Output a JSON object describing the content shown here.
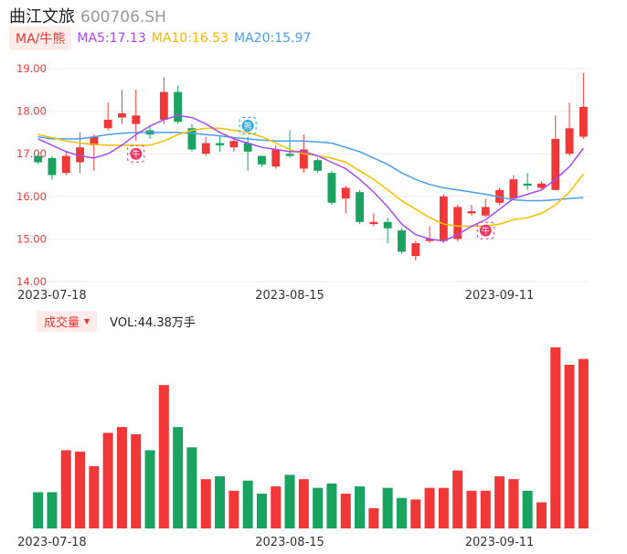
{
  "stock": {
    "name": "曲江文旅",
    "code": "600706.SH"
  },
  "indicators": {
    "ma_tag": "MA/牛熊",
    "ma5": "MA5:17.13",
    "ma10": "MA10:16.53",
    "ma20": "MA20:15.97",
    "colors": {
      "ma5": "#a64bf4",
      "ma10": "#f5c000",
      "ma20": "#4a9ef0",
      "up": "#f03838",
      "down": "#1aa260"
    }
  },
  "volume": {
    "tag": "成交量",
    "text": "VOL:44.38万手"
  },
  "markers": {
    "bull": "牛",
    "bear": "熊"
  },
  "chart_data": {
    "type": "candlestick",
    "y_ticks": [
      "19.00",
      "18.00",
      "17.00",
      "16.00",
      "15.00",
      "14.00"
    ],
    "ylim": [
      14.0,
      19.0
    ],
    "x_ticks": [
      {
        "label": "2023-07-18",
        "index": 1
      },
      {
        "label": "2023-08-15",
        "index": 18
      },
      {
        "label": "2023-09-11",
        "index": 33
      }
    ],
    "candles": [
      {
        "o": 16.95,
        "c": 16.8,
        "h": 17.0,
        "l": 16.75,
        "v": 25
      },
      {
        "o": 16.9,
        "c": 16.5,
        "h": 16.95,
        "l": 16.4,
        "v": 25
      },
      {
        "o": 16.55,
        "c": 16.95,
        "h": 17.05,
        "l": 16.5,
        "v": 54
      },
      {
        "o": 16.8,
        "c": 17.15,
        "h": 17.5,
        "l": 16.55,
        "v": 53
      },
      {
        "o": 17.2,
        "c": 17.4,
        "h": 17.45,
        "l": 16.6,
        "v": 43
      },
      {
        "o": 17.6,
        "c": 17.8,
        "h": 18.2,
        "l": 17.55,
        "v": 66
      },
      {
        "o": 17.85,
        "c": 17.95,
        "h": 18.5,
        "l": 17.7,
        "v": 70
      },
      {
        "o": 17.7,
        "c": 17.9,
        "h": 18.5,
        "l": 17.3,
        "v": 65
      },
      {
        "o": 17.55,
        "c": 17.45,
        "h": 17.65,
        "l": 17.35,
        "v": 54
      },
      {
        "o": 17.8,
        "c": 18.45,
        "h": 18.8,
        "l": 17.7,
        "v": 99
      },
      {
        "o": 18.45,
        "c": 17.75,
        "h": 18.6,
        "l": 17.7,
        "v": 70
      },
      {
        "o": 17.6,
        "c": 17.1,
        "h": 17.7,
        "l": 17.05,
        "v": 56
      },
      {
        "o": 17.0,
        "c": 17.25,
        "h": 17.4,
        "l": 16.95,
        "v": 34
      },
      {
        "o": 17.25,
        "c": 17.2,
        "h": 17.4,
        "l": 17.05,
        "v": 36
      },
      {
        "o": 17.15,
        "c": 17.3,
        "h": 17.35,
        "l": 17.05,
        "v": 26
      },
      {
        "o": 17.25,
        "c": 17.05,
        "h": 17.4,
        "l": 16.6,
        "v": 33
      },
      {
        "o": 16.95,
        "c": 16.75,
        "h": 16.95,
        "l": 16.7,
        "v": 24
      },
      {
        "o": 16.7,
        "c": 17.1,
        "h": 17.2,
        "l": 16.65,
        "v": 29
      },
      {
        "o": 17.0,
        "c": 16.95,
        "h": 17.55,
        "l": 16.9,
        "v": 37
      },
      {
        "o": 16.65,
        "c": 17.1,
        "h": 17.45,
        "l": 16.55,
        "v": 34
      },
      {
        "o": 16.85,
        "c": 16.6,
        "h": 16.9,
        "l": 16.55,
        "v": 28
      },
      {
        "o": 16.55,
        "c": 15.85,
        "h": 16.6,
        "l": 15.8,
        "v": 31
      },
      {
        "o": 15.95,
        "c": 16.2,
        "h": 16.25,
        "l": 15.6,
        "v": 24
      },
      {
        "o": 16.1,
        "c": 15.4,
        "h": 16.15,
        "l": 15.35,
        "v": 29
      },
      {
        "o": 15.35,
        "c": 15.4,
        "h": 15.6,
        "l": 15.3,
        "v": 14
      },
      {
        "o": 15.4,
        "c": 15.25,
        "h": 15.5,
        "l": 14.9,
        "v": 28
      },
      {
        "o": 15.2,
        "c": 14.7,
        "h": 15.25,
        "l": 14.65,
        "v": 21
      },
      {
        "o": 14.6,
        "c": 14.9,
        "h": 14.95,
        "l": 14.5,
        "v": 20
      },
      {
        "o": 14.95,
        "c": 15.0,
        "h": 15.3,
        "l": 14.9,
        "v": 28
      },
      {
        "o": 14.95,
        "c": 16.0,
        "h": 16.05,
        "l": 14.9,
        "v": 28
      },
      {
        "o": 15.0,
        "c": 15.75,
        "h": 15.8,
        "l": 14.95,
        "v": 40
      },
      {
        "o": 15.6,
        "c": 15.65,
        "h": 15.8,
        "l": 15.55,
        "v": 26
      },
      {
        "o": 15.55,
        "c": 15.75,
        "h": 15.95,
        "l": 15.5,
        "v": 26
      },
      {
        "o": 15.85,
        "c": 16.15,
        "h": 16.2,
        "l": 15.8,
        "v": 36
      },
      {
        "o": 15.95,
        "c": 16.4,
        "h": 16.5,
        "l": 15.9,
        "v": 34
      },
      {
        "o": 16.3,
        "c": 16.25,
        "h": 16.55,
        "l": 16.15,
        "v": 26
      },
      {
        "o": 16.2,
        "c": 16.3,
        "h": 16.35,
        "l": 16.15,
        "v": 18
      },
      {
        "o": 16.15,
        "c": 17.35,
        "h": 17.9,
        "l": 16.15,
        "v": 125
      },
      {
        "o": 17.0,
        "c": 17.6,
        "h": 18.2,
        "l": 16.95,
        "v": 113
      },
      {
        "o": 17.4,
        "c": 18.1,
        "h": 18.9,
        "l": 17.35,
        "v": 117
      }
    ],
    "volume_max": 125,
    "ma5": [
      17.35,
      17.2,
      17.05,
      16.95,
      16.9,
      17.0,
      17.2,
      17.45,
      17.65,
      17.8,
      17.9,
      17.85,
      17.7,
      17.5,
      17.35,
      17.25,
      17.15,
      17.1,
      17.05,
      17.05,
      16.95,
      16.8,
      16.65,
      16.4,
      16.1,
      15.75,
      15.35,
      15.1,
      15.0,
      14.95,
      15.1,
      15.3,
      15.45,
      15.7,
      15.95,
      16.05,
      16.15,
      16.4,
      16.7,
      17.13
    ],
    "ma10": [
      17.45,
      17.38,
      17.3,
      17.25,
      17.22,
      17.2,
      17.2,
      17.2,
      17.2,
      17.3,
      17.45,
      17.55,
      17.6,
      17.6,
      17.55,
      17.5,
      17.4,
      17.25,
      17.1,
      17.0,
      16.95,
      16.9,
      16.8,
      16.6,
      16.4,
      16.15,
      15.9,
      15.7,
      15.5,
      15.35,
      15.3,
      15.3,
      15.3,
      15.35,
      15.45,
      15.5,
      15.6,
      15.8,
      16.1,
      16.53
    ],
    "ma20": [
      17.4,
      17.35,
      17.35,
      17.35,
      17.4,
      17.45,
      17.48,
      17.5,
      17.5,
      17.5,
      17.5,
      17.48,
      17.45,
      17.42,
      17.38,
      17.35,
      17.32,
      17.3,
      17.3,
      17.3,
      17.28,
      17.25,
      17.15,
      17.05,
      16.9,
      16.75,
      16.55,
      16.4,
      16.28,
      16.2,
      16.15,
      16.1,
      16.05,
      15.98,
      15.92,
      15.9,
      15.9,
      15.92,
      15.95,
      15.97
    ],
    "bull_markers": [
      7,
      32
    ],
    "bear_markers": [
      15
    ]
  }
}
